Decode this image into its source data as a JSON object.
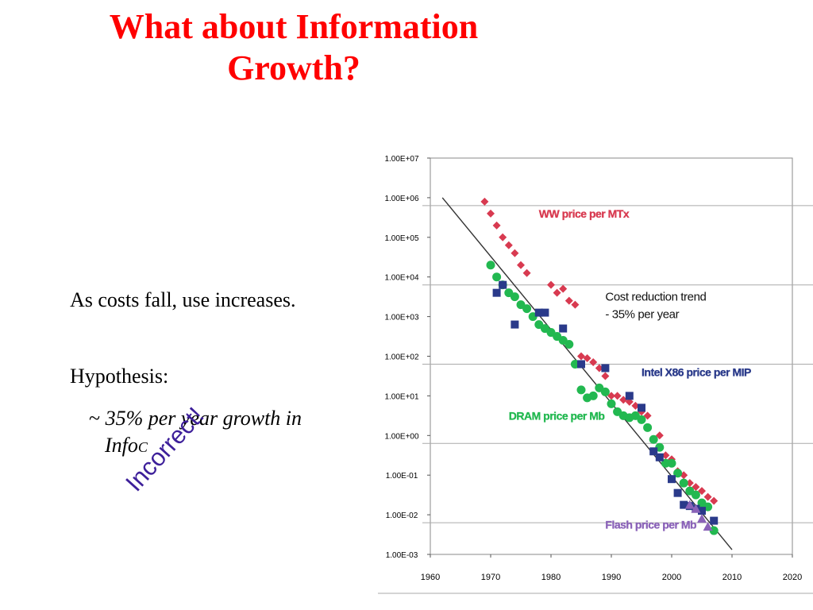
{
  "slide": {
    "title_line1": "What about Information",
    "title_line2": "Growth?",
    "text1": "As costs fall, use increases.",
    "text2": "Hypothesis:",
    "bullet_tilde": "~",
    "bullet_text": "35% per year growth in",
    "bullet_text2": "Info",
    "bullet_sub": "C",
    "stamp": "Incorrect!"
  },
  "chart_data": {
    "type": "scatter",
    "scale": "log",
    "xlim": [
      1960,
      2020
    ],
    "ylim_exponent": [
      -3,
      7
    ],
    "xticks": [
      "1960",
      "1970",
      "1980",
      "1990",
      "2000",
      "2010",
      "2020"
    ],
    "yticks": [
      "1.00E-03",
      "1.00E-02",
      "1.00E-01",
      "1.00E+00",
      "1.00E+01",
      "1.00E+02",
      "1.00E+03",
      "1.00E+04",
      "1.00E+05",
      "1.00E+06",
      "1.00E+07"
    ],
    "trend": {
      "label_line1": "Cost reduction trend",
      "label_line2": "- 35% per year",
      "color": "#333333",
      "points": [
        [
          1962,
          6.0
        ],
        [
          2010,
          -2.88
        ]
      ]
    },
    "series": [
      {
        "name": "WW price per MTx",
        "color": "#d83a50",
        "marker": "diamond",
        "points": [
          [
            1969,
            5.9
          ],
          [
            1970,
            5.6
          ],
          [
            1971,
            5.3
          ],
          [
            1972,
            5.0
          ],
          [
            1973,
            4.8
          ],
          [
            1974,
            4.6
          ],
          [
            1975,
            4.3
          ],
          [
            1976,
            4.1
          ],
          [
            1980,
            3.8
          ],
          [
            1981,
            3.6
          ],
          [
            1982,
            3.7
          ],
          [
            1983,
            3.4
          ],
          [
            1984,
            3.3
          ],
          [
            1985,
            2.0
          ],
          [
            1986,
            1.95
          ],
          [
            1987,
            1.85
          ],
          [
            1988,
            1.7
          ],
          [
            1989,
            1.5
          ],
          [
            1990,
            1.0
          ],
          [
            1991,
            1.0
          ],
          [
            1992,
            0.9
          ],
          [
            1993,
            0.85
          ],
          [
            1994,
            0.75
          ],
          [
            1995,
            0.6
          ],
          [
            1996,
            0.5
          ],
          [
            1998,
            0.0
          ],
          [
            1999,
            -0.5
          ],
          [
            2000,
            -0.6
          ],
          [
            2001,
            -0.9
          ],
          [
            2002,
            -1.0
          ],
          [
            2003,
            -1.2
          ],
          [
            2004,
            -1.3
          ],
          [
            2005,
            -1.4
          ],
          [
            2006,
            -1.55
          ],
          [
            2007,
            -1.65
          ]
        ]
      },
      {
        "name": "DRAM price per Mb",
        "color": "#22b850",
        "marker": "circle",
        "points": [
          [
            1970,
            4.3
          ],
          [
            1971,
            4.0
          ],
          [
            1972,
            3.8
          ],
          [
            1973,
            3.6
          ],
          [
            1974,
            3.5
          ],
          [
            1975,
            3.3
          ],
          [
            1976,
            3.2
          ],
          [
            1977,
            3.0
          ],
          [
            1978,
            2.8
          ],
          [
            1979,
            2.7
          ],
          [
            1980,
            2.6
          ],
          [
            1981,
            2.5
          ],
          [
            1982,
            2.4
          ],
          [
            1983,
            2.3
          ],
          [
            1984,
            1.8
          ],
          [
            1985,
            1.15
          ],
          [
            1986,
            0.95
          ],
          [
            1987,
            1.0
          ],
          [
            1988,
            1.2
          ],
          [
            1989,
            1.1
          ],
          [
            1990,
            0.8
          ],
          [
            1991,
            0.6
          ],
          [
            1992,
            0.5
          ],
          [
            1993,
            0.45
          ],
          [
            1994,
            0.5
          ],
          [
            1995,
            0.4
          ],
          [
            1996,
            0.2
          ],
          [
            1997,
            -0.1
          ],
          [
            1998,
            -0.3
          ],
          [
            1999,
            -0.7
          ],
          [
            2000,
            -0.7
          ],
          [
            2001,
            -0.95
          ],
          [
            2002,
            -1.2
          ],
          [
            2003,
            -1.4
          ],
          [
            2004,
            -1.5
          ],
          [
            2005,
            -1.7
          ],
          [
            2006,
            -1.8
          ],
          [
            2007,
            -2.4
          ]
        ]
      },
      {
        "name": "Intel X86 price per MIP",
        "color": "#2a3a8a",
        "marker": "square",
        "points": [
          [
            1971,
            3.6
          ],
          [
            1972,
            3.8
          ],
          [
            1974,
            2.8
          ],
          [
            1978,
            3.1
          ],
          [
            1979,
            3.1
          ],
          [
            1982,
            2.7
          ],
          [
            1985,
            1.8
          ],
          [
            1989,
            1.7
          ],
          [
            1993,
            1.0
          ],
          [
            1995,
            0.7
          ],
          [
            1997,
            -0.4
          ],
          [
            1998,
            -0.55
          ],
          [
            2000,
            -1.1
          ],
          [
            2001,
            -1.45
          ],
          [
            2002,
            -1.75
          ],
          [
            2003,
            -1.78
          ],
          [
            2004,
            -1.85
          ],
          [
            2005,
            -1.9
          ],
          [
            2007,
            -2.15
          ]
        ]
      },
      {
        "name": "Flash price per Mb",
        "color": "#8a62b8",
        "marker": "triangle",
        "points": [
          [
            2003,
            -1.75
          ],
          [
            2004,
            -1.85
          ],
          [
            2005,
            -2.1
          ],
          [
            2006,
            -2.3
          ]
        ]
      }
    ],
    "labels": [
      {
        "text": "WW price per MTx",
        "color": "#d83a50",
        "year": 1978,
        "exp": 5.5
      },
      {
        "text": "Intel X86 price per MIP",
        "color": "#2a3a8a",
        "year": 1995,
        "exp": 1.5
      },
      {
        "text": "DRAM  price per Mb",
        "color": "#22b850",
        "year": 1973,
        "exp": 0.4
      },
      {
        "text": "Flash price per Mb",
        "color": "#8a62b8",
        "year": 1989,
        "exp": -2.35
      }
    ]
  }
}
